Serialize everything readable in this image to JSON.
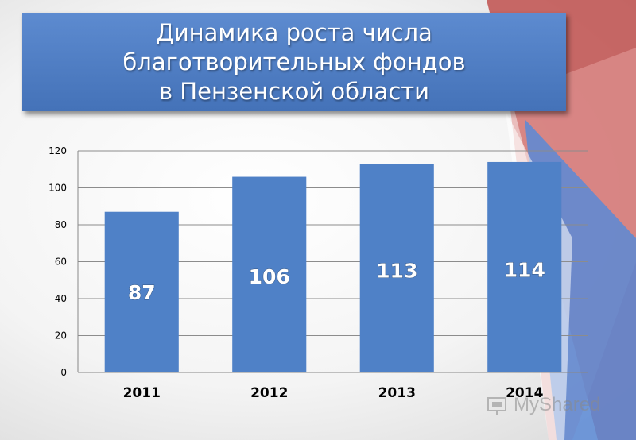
{
  "title": "Динамика роста числа\nблаготворительных фондов\nв Пензенской области",
  "watermark": "MyShared",
  "colors": {
    "bar": "#4f81c7",
    "title_bg": "#4f7fc4",
    "accent_red": "#c0504d",
    "accent_blue": "#5b8ad6"
  },
  "chart_data": {
    "type": "bar",
    "title": "Динамика роста числа благотворительных фондов в Пензенской области",
    "categories": [
      "2011",
      "2012",
      "2013",
      "2014"
    ],
    "values": [
      87,
      106,
      113,
      114
    ],
    "data_labels": [
      "87",
      "106",
      "113",
      "114"
    ],
    "ylim": [
      0,
      120
    ],
    "yticks": [
      0,
      20,
      40,
      60,
      80,
      100,
      120
    ],
    "grid": true,
    "legend": "none",
    "xlabel": "",
    "ylabel": ""
  }
}
